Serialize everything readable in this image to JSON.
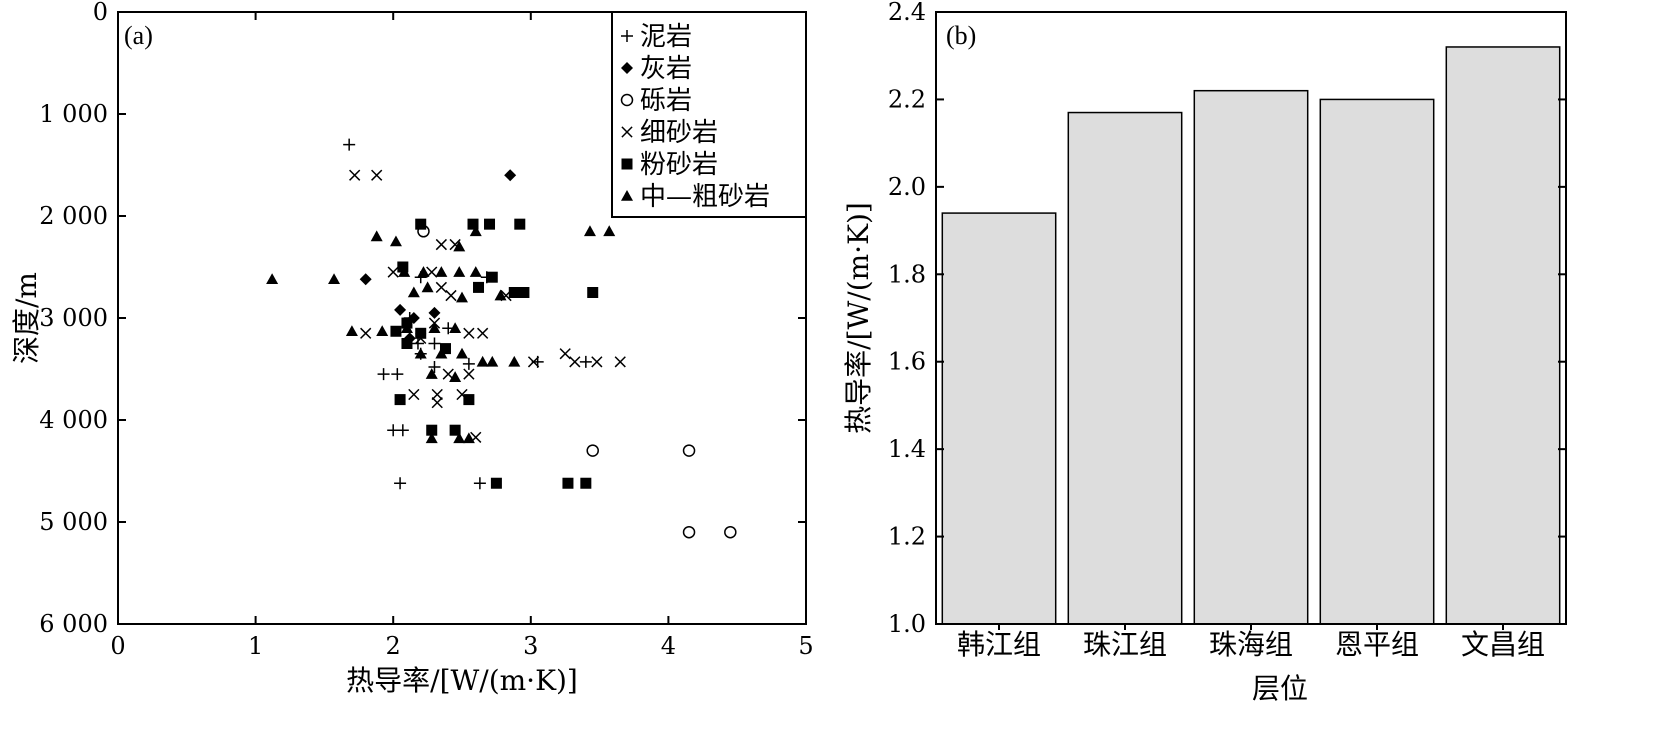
{
  "chart_data": [
    {
      "panel": "(a)",
      "type": "scatter",
      "xlabel": "热导率/[W/(m·K)]",
      "ylabel": "深度/m",
      "xlim": [
        0,
        5
      ],
      "ylim": [
        0,
        6000
      ],
      "y_inverted": true,
      "xticks": [
        0,
        1,
        2,
        3,
        4,
        5
      ],
      "yticks": [
        0,
        1000,
        2000,
        3000,
        4000,
        5000,
        6000
      ],
      "ytick_labels": [
        "0",
        "1 000",
        "2 000",
        "3 000",
        "4 000",
        "5 000",
        "6 000"
      ],
      "legend_position": "top-right",
      "series": [
        {
          "name": "泥岩",
          "marker": "plus",
          "points": [
            [
              1.68,
              1300
            ],
            [
              2.2,
              2600
            ],
            [
              2.12,
              3000
            ],
            [
              2.2,
              3350
            ],
            [
              1.93,
              3550
            ],
            [
              2.03,
              3550
            ],
            [
              2.3,
              3480
            ],
            [
              2.0,
              4100
            ],
            [
              2.07,
              4100
            ],
            [
              2.05,
              4620
            ],
            [
              2.63,
              4620
            ],
            [
              2.4,
              3100
            ],
            [
              3.05,
              3430
            ],
            [
              3.4,
              3430
            ],
            [
              2.55,
              3450
            ],
            [
              2.3,
              3250
            ],
            [
              2.18,
              3250
            ],
            [
              2.68,
              2600
            ]
          ]
        },
        {
          "name": "灰岩",
          "marker": "diamond",
          "points": [
            [
              2.85,
              1600
            ],
            [
              1.8,
              2620
            ],
            [
              2.05,
              2920
            ],
            [
              2.15,
              3000
            ],
            [
              2.3,
              2950
            ],
            [
              2.12,
              3200
            ]
          ]
        },
        {
          "name": "砾岩",
          "marker": "circle",
          "points": [
            [
              2.22,
              2150
            ],
            [
              3.45,
              4300
            ],
            [
              4.15,
              4300
            ],
            [
              4.15,
              5100
            ],
            [
              4.45,
              5100
            ]
          ]
        },
        {
          "name": "细砂岩",
          "marker": "cross",
          "points": [
            [
              1.72,
              1600
            ],
            [
              1.88,
              1600
            ],
            [
              2.35,
              2280
            ],
            [
              2.45,
              2280
            ],
            [
              2.0,
              2550
            ],
            [
              2.28,
              2550
            ],
            [
              2.42,
              2780
            ],
            [
              2.82,
              2780
            ],
            [
              1.8,
              3150
            ],
            [
              2.3,
              3050
            ],
            [
              2.55,
              3150
            ],
            [
              2.65,
              3150
            ],
            [
              2.4,
              3550
            ],
            [
              2.55,
              3550
            ],
            [
              3.02,
              3430
            ],
            [
              3.25,
              3350
            ],
            [
              3.32,
              3430
            ],
            [
              3.48,
              3430
            ],
            [
              3.65,
              3430
            ],
            [
              2.15,
              3750
            ],
            [
              2.32,
              3750
            ],
            [
              2.5,
              3750
            ],
            [
              2.32,
              3830
            ],
            [
              2.6,
              4170
            ],
            [
              2.35,
              2700
            ],
            [
              2.2,
              3200
            ]
          ]
        },
        {
          "name": "粉砂岩",
          "marker": "square",
          "points": [
            [
              2.2,
              2080
            ],
            [
              2.58,
              2080
            ],
            [
              2.7,
              2080
            ],
            [
              2.92,
              2080
            ],
            [
              2.07,
              2500
            ],
            [
              2.72,
              2600
            ],
            [
              2.62,
              2700
            ],
            [
              2.88,
              2750
            ],
            [
              2.95,
              2750
            ],
            [
              3.45,
              2750
            ],
            [
              2.02,
              3130
            ],
            [
              2.1,
              3050
            ],
            [
              2.2,
              3150
            ],
            [
              2.38,
              3300
            ],
            [
              2.1,
              3250
            ],
            [
              2.05,
              3800
            ],
            [
              2.55,
              3800
            ],
            [
              2.28,
              4100
            ],
            [
              2.45,
              4100
            ],
            [
              2.75,
              4620
            ],
            [
              3.27,
              4620
            ],
            [
              3.4,
              4620
            ]
          ]
        },
        {
          "name": "中—粗砂岩",
          "marker": "triangle",
          "points": [
            [
              1.12,
              2620
            ],
            [
              1.57,
              2620
            ],
            [
              1.88,
              2200
            ],
            [
              2.02,
              2250
            ],
            [
              2.48,
              2300
            ],
            [
              2.6,
              2150
            ],
            [
              3.43,
              2150
            ],
            [
              3.57,
              2150
            ],
            [
              2.08,
              2550
            ],
            [
              2.22,
              2550
            ],
            [
              2.35,
              2550
            ],
            [
              2.48,
              2550
            ],
            [
              2.6,
              2550
            ],
            [
              2.15,
              2750
            ],
            [
              2.25,
              2700
            ],
            [
              2.5,
              2800
            ],
            [
              2.78,
              2780
            ],
            [
              1.7,
              3130
            ],
            [
              1.92,
              3130
            ],
            [
              2.1,
              3100
            ],
            [
              2.3,
              3100
            ],
            [
              2.45,
              3100
            ],
            [
              2.2,
              3350
            ],
            [
              2.35,
              3350
            ],
            [
              2.5,
              3350
            ],
            [
              2.65,
              3430
            ],
            [
              2.72,
              3430
            ],
            [
              2.88,
              3430
            ],
            [
              2.28,
              3550
            ],
            [
              2.45,
              3580
            ],
            [
              2.28,
              4180
            ],
            [
              2.48,
              4180
            ],
            [
              2.55,
              4180
            ]
          ]
        }
      ]
    },
    {
      "panel": "(b)",
      "type": "bar",
      "xlabel": "层位",
      "ylabel": "热导率/[W/(m·K)]",
      "ylim": [
        1.0,
        2.4
      ],
      "yticks": [
        1.0,
        1.2,
        1.4,
        1.6,
        1.8,
        2.0,
        2.2,
        2.4
      ],
      "ytick_labels": [
        "1.0",
        "1.2",
        "1.4",
        "1.6",
        "1.8",
        "2.0",
        "2.2",
        "2.4"
      ],
      "categories": [
        "韩江组",
        "珠江组",
        "珠海组",
        "恩平组",
        "文昌组"
      ],
      "values": [
        1.94,
        2.17,
        2.22,
        2.2,
        2.32
      ],
      "bar_color": "#dddddd"
    }
  ]
}
